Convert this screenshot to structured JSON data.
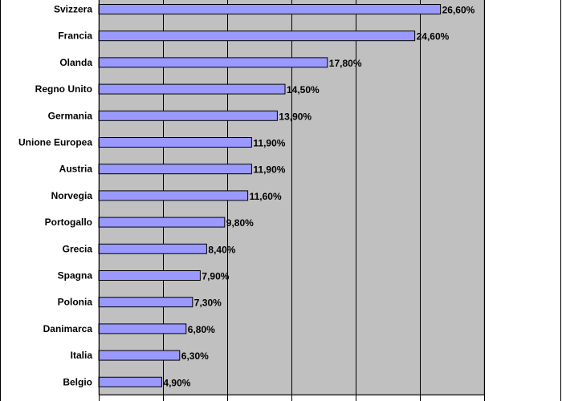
{
  "chart_data": {
    "type": "bar",
    "orientation": "horizontal",
    "categories": [
      "Svizzera",
      "Francia",
      "Olanda",
      "Regno Unito",
      "Germania",
      "Unione Europea",
      "Austria",
      "Norvegia",
      "Portogallo",
      "Grecia",
      "Spagna",
      "Polonia",
      "Danimarca",
      "Italia",
      "Belgio"
    ],
    "values": [
      26.6,
      24.6,
      17.8,
      14.5,
      13.9,
      11.9,
      11.9,
      11.6,
      9.8,
      8.4,
      7.9,
      7.3,
      6.8,
      6.3,
      4.9
    ],
    "value_labels": [
      "26,60%",
      "24,60%",
      "17,80%",
      "14,50%",
      "13,90%",
      "11,90%",
      "11,90%",
      "11,60%",
      "9,80%",
      "8,40%",
      "7,90%",
      "7,30%",
      "6,80%",
      "6,30%",
      "4,90%"
    ],
    "xlim": [
      0,
      30
    ],
    "x_gridlines": [
      0,
      5,
      10,
      15,
      20,
      25,
      30
    ],
    "grid": true,
    "title": "",
    "xlabel": "",
    "ylabel": "",
    "colors": {
      "bar_fill": "#9999ff",
      "bar_stroke": "#000000",
      "plot_background": "#c0c0c0",
      "gridline": "#000000",
      "page_background": "#ffffff"
    }
  }
}
